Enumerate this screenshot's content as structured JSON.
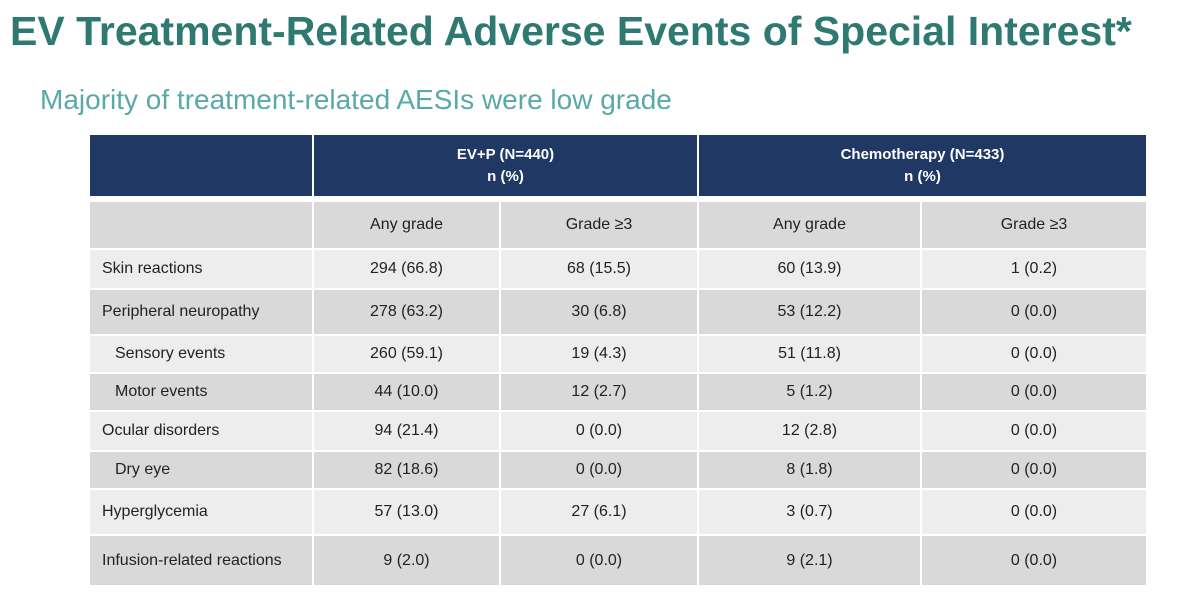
{
  "slide": {
    "title": "EV Treatment-Related Adverse Events of Special Interest*",
    "subtitle": "Majority of treatment-related AESIs were low grade"
  },
  "table": {
    "groups": [
      {
        "line1": "EV+P (N=440)",
        "line2": "n (%)"
      },
      {
        "line1": "Chemotherapy (N=433)",
        "line2": "n (%)"
      }
    ],
    "subheaders": [
      "Any grade",
      "Grade ≥3",
      "Any grade",
      "Grade ≥3"
    ],
    "rows": [
      {
        "label": "Skin reactions",
        "indent": false,
        "cells": [
          "294 (66.8)",
          "68 (15.5)",
          "60 (13.9)",
          "1 (0.2)"
        ]
      },
      {
        "label": "Peripheral neuropathy",
        "indent": false,
        "cells": [
          "278 (63.2)",
          "30 (6.8)",
          "53 (12.2)",
          "0 (0.0)"
        ]
      },
      {
        "label": "Sensory events",
        "indent": true,
        "cells": [
          "260 (59.1)",
          "19 (4.3)",
          "51 (11.8)",
          "0 (0.0)"
        ]
      },
      {
        "label": "Motor events",
        "indent": true,
        "cells": [
          "44 (10.0)",
          "12 (2.7)",
          "5 (1.2)",
          "0 (0.0)"
        ]
      },
      {
        "label": "Ocular disorders",
        "indent": false,
        "cells": [
          "94 (21.4)",
          "0 (0.0)",
          "12 (2.8)",
          "0 (0.0)"
        ]
      },
      {
        "label": "Dry eye",
        "indent": true,
        "cells": [
          "82 (18.6)",
          "0 (0.0)",
          "8 (1.8)",
          "0 (0.0)"
        ]
      },
      {
        "label": "Hyperglycemia",
        "indent": false,
        "cells": [
          "57 (13.0)",
          "27 (6.1)",
          "3 (0.7)",
          "0 (0.0)"
        ]
      },
      {
        "label": "Infusion-related reactions",
        "indent": false,
        "cells": [
          "9 (2.0)",
          "0 (0.0)",
          "9 (2.1)",
          "0 (0.0)"
        ]
      }
    ]
  },
  "colors": {
    "title": "#2e7a72",
    "subtitle": "#5aa8a8",
    "header_bg": "#1f3864",
    "header_text": "#ffffff",
    "row_light": "#ededed",
    "row_dark": "#d9d9d9"
  }
}
